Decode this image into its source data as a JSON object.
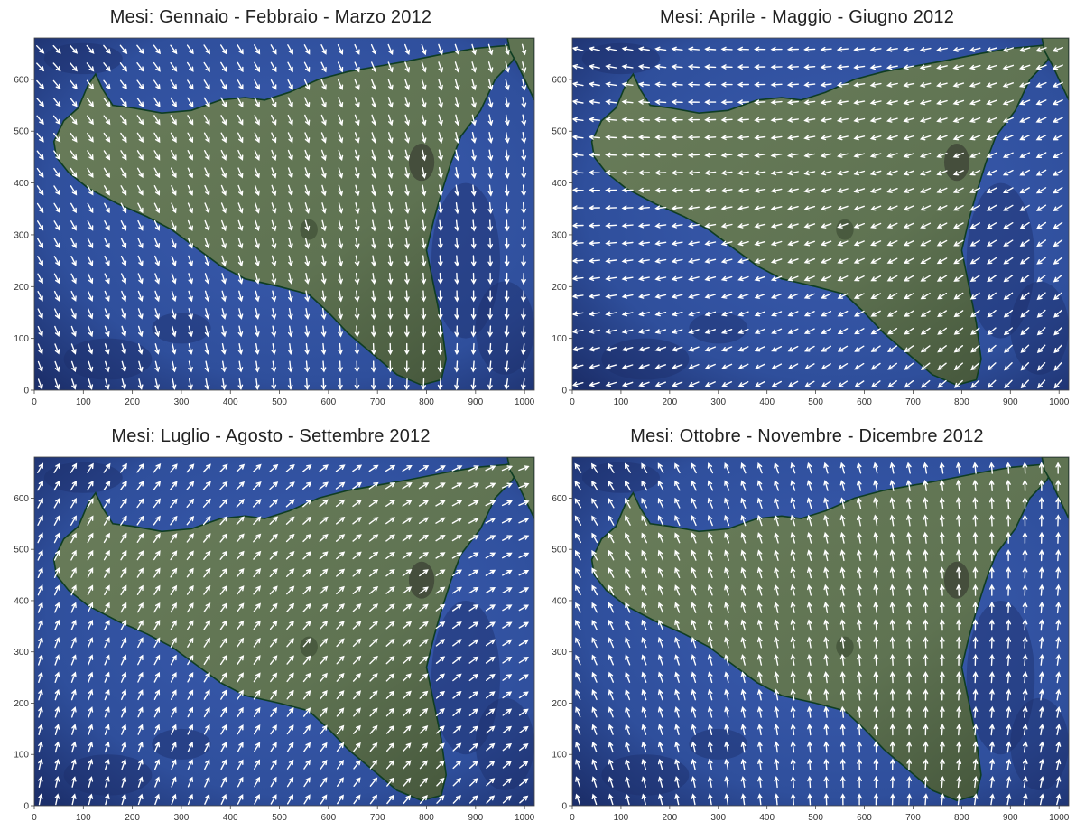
{
  "panels": [
    {
      "title": "Mesi: Gennaio - Febbraio - Marzo 2012",
      "pattern": "q1"
    },
    {
      "title": "Mesi: Aprile - Maggio - Giugno 2012",
      "pattern": "q2"
    },
    {
      "title": "Mesi: Luglio - Agosto - Settembre 2012",
      "pattern": "q3"
    },
    {
      "title": "Mesi: Ottobre - Novembre - Dicembre 2012",
      "pattern": "q4"
    }
  ],
  "axes": {
    "x_ticks": [
      "0",
      "100",
      "200",
      "300",
      "400",
      "500",
      "600",
      "700",
      "800",
      "900",
      "1000"
    ],
    "y_ticks": [
      "0",
      "100",
      "200",
      "300",
      "400",
      "500",
      "600"
    ],
    "x_values": [
      0,
      100,
      200,
      300,
      400,
      500,
      600,
      700,
      800,
      900,
      1000
    ],
    "y_values": [
      0,
      100,
      200,
      300,
      400,
      500,
      600
    ],
    "xlim": [
      0,
      1020
    ],
    "ylim": [
      0,
      680
    ]
  },
  "colors": {
    "sea": "#2f4f9c",
    "sea_dark": "#1c2f6b",
    "land": "#5f7352",
    "land_dark": "#3f5036",
    "coast": "#0f3d22",
    "arrow": "#ffffff"
  },
  "arrow_icon": "white-wind-arrow-icon"
}
